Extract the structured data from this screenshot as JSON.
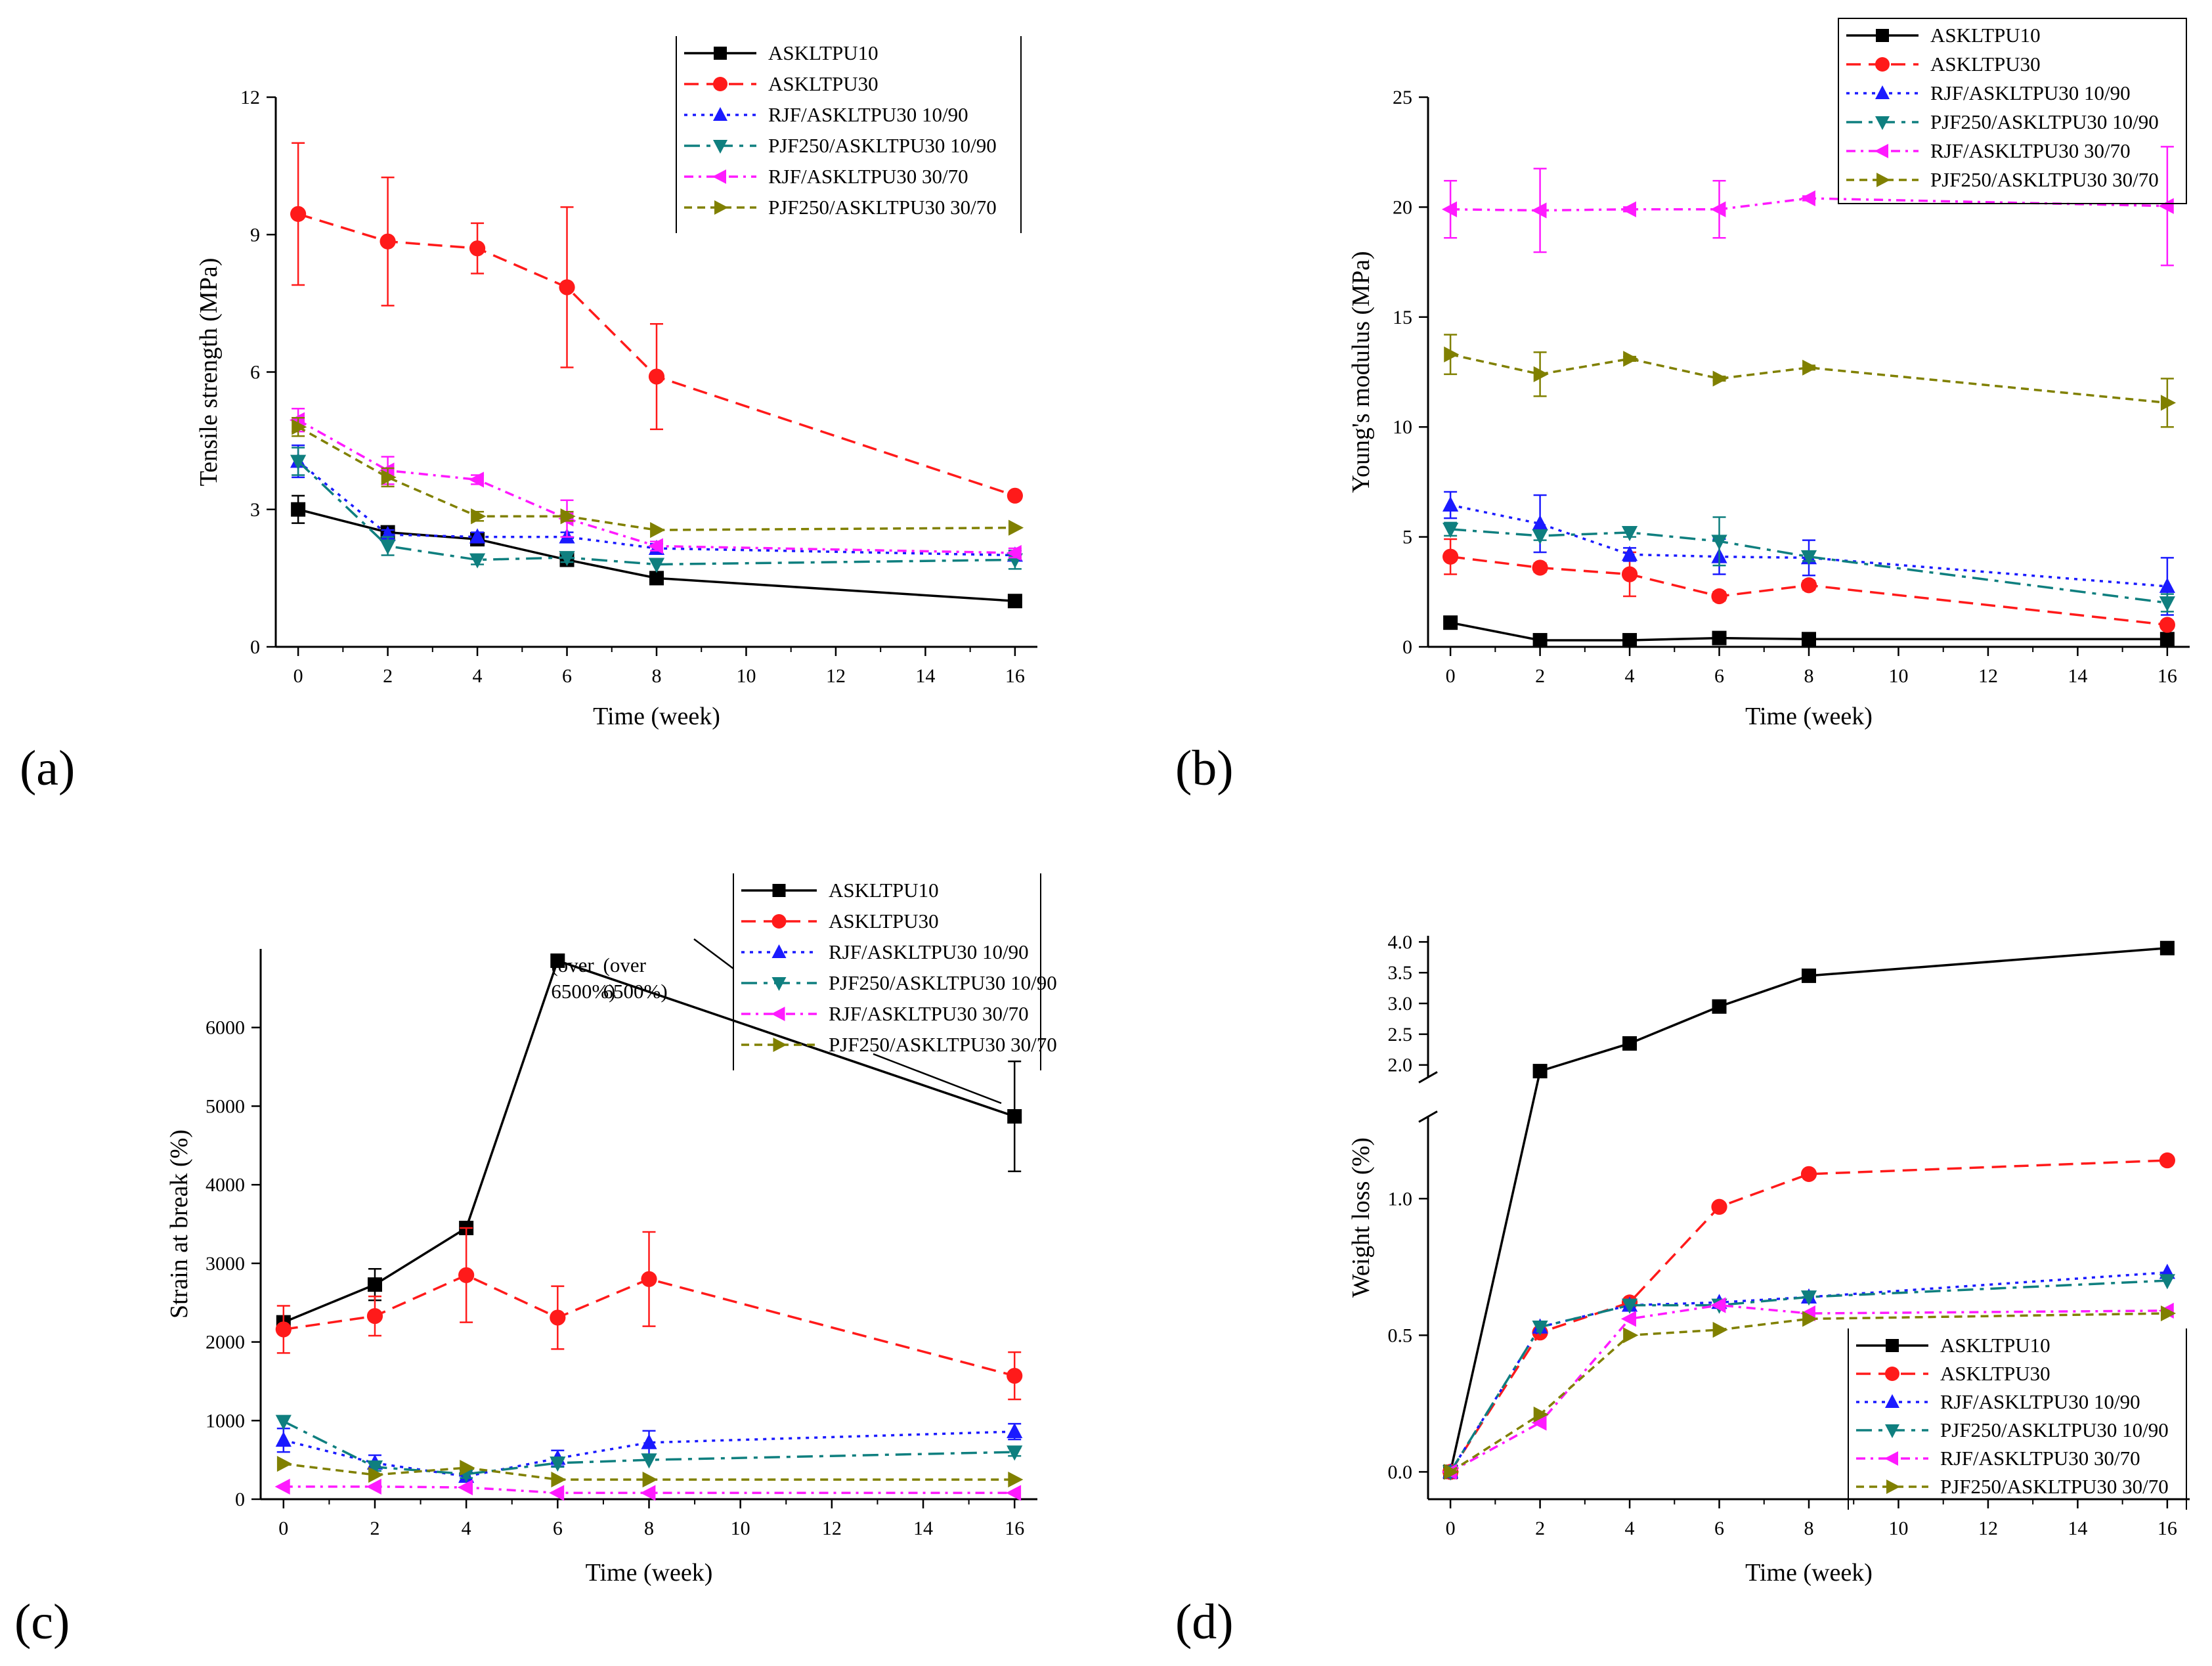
{
  "figure": {
    "panel_labels": [
      "(a)",
      "(b)",
      "(c)",
      "(d)"
    ]
  },
  "series_styles": [
    {
      "name": "ASKLTPU10",
      "color": "#000000",
      "marker": "square",
      "dash": "solid"
    },
    {
      "name": "ASKLTPU30",
      "color": "#ff1a1a",
      "marker": "circle",
      "dash": "longdash"
    },
    {
      "name": "RJF/ASKLTPU30 10/90",
      "color": "#1a1aff",
      "marker": "triangle-up",
      "dash": "dot"
    },
    {
      "name": "PJF250/ASKLTPU30 10/90",
      "color": "#0f7f7f",
      "marker": "triangle-down",
      "dash": "dashdot"
    },
    {
      "name": "RJF/ASKLTPU30 30/70",
      "color": "#ff1aff",
      "marker": "triangle-left",
      "dash": "dashdot2"
    },
    {
      "name": "PJF250/ASKLTPU30 30/70",
      "color": "#808000",
      "marker": "triangle-right",
      "dash": "shortdash"
    }
  ],
  "chart_data": [
    {
      "panel": "(a)",
      "type": "line",
      "title": "",
      "xlabel": "Time (week)",
      "ylabel": "Tensile strength (MPa)",
      "xlim": [
        -0.5,
        16.5
      ],
      "ylim": [
        0,
        12
      ],
      "xticks": [
        0,
        2,
        4,
        6,
        8,
        10,
        12,
        14,
        16
      ],
      "yticks": [
        0,
        3,
        6,
        9,
        12
      ],
      "legend": "top-right",
      "series": [
        {
          "name": "ASKLTPU10",
          "x": [
            0,
            2,
            4,
            6,
            8,
            16
          ],
          "values": [
            3.0,
            2.5,
            2.35,
            1.9,
            1.5,
            1.0
          ],
          "errors": [
            0.3,
            0.1,
            0.1,
            0.1,
            0,
            0
          ]
        },
        {
          "name": "ASKLTPU30",
          "x": [
            0,
            2,
            4,
            6,
            8,
            16
          ],
          "values": [
            9.45,
            8.85,
            8.7,
            7.85,
            5.9,
            3.3
          ],
          "errors": [
            1.55,
            1.4,
            0.55,
            1.75,
            1.15,
            0
          ]
        },
        {
          "name": "RJF/ASKLTPU30 10/90",
          "x": [
            0,
            2,
            4,
            6,
            8,
            16
          ],
          "values": [
            4.05,
            2.45,
            2.4,
            2.4,
            2.15,
            2.0
          ],
          "errors": [
            0.35,
            0.1,
            0.1,
            0.1,
            0.1,
            0.1
          ]
        },
        {
          "name": "PJF250/ASKLTPU30 10/90",
          "x": [
            0,
            2,
            4,
            6,
            8,
            16
          ],
          "values": [
            4.05,
            2.2,
            1.9,
            1.95,
            1.8,
            1.9
          ],
          "errors": [
            0.3,
            0.2,
            0.1,
            0.1,
            0,
            0.2
          ]
        },
        {
          "name": "RJF/ASKLTPU30 30/70",
          "x": [
            0,
            2,
            4,
            6,
            8,
            16
          ],
          "values": [
            4.95,
            3.85,
            3.65,
            2.8,
            2.2,
            2.05
          ],
          "errors": [
            0.25,
            0.3,
            0.1,
            0.4,
            0.1,
            0.1
          ]
        },
        {
          "name": "PJF250/ASKLTPU30 30/70",
          "x": [
            0,
            2,
            4,
            6,
            8,
            16
          ],
          "values": [
            4.8,
            3.7,
            2.85,
            2.85,
            2.55,
            2.6
          ],
          "errors": [
            0.2,
            0.2,
            0.1,
            0.1,
            0,
            0
          ]
        }
      ]
    },
    {
      "panel": "(b)",
      "type": "line",
      "title": "",
      "xlabel": "Time (week)",
      "ylabel": "Young's modulus (MPa)",
      "xlim": [
        -0.5,
        16.5
      ],
      "ylim": [
        0,
        25
      ],
      "xticks": [
        0,
        2,
        4,
        6,
        8,
        10,
        12,
        14,
        16
      ],
      "yticks": [
        0,
        5,
        10,
        15,
        20,
        25
      ],
      "legend": "top-right",
      "series": [
        {
          "name": "ASKLTPU10",
          "x": [
            0,
            2,
            4,
            6,
            8,
            16
          ],
          "values": [
            1.1,
            0.3,
            0.3,
            0.4,
            0.35,
            0.35
          ],
          "errors": [
            0.1,
            0,
            0,
            0,
            0,
            0
          ]
        },
        {
          "name": "ASKLTPU30",
          "x": [
            0,
            2,
            4,
            6,
            8,
            16
          ],
          "values": [
            4.1,
            3.6,
            3.3,
            2.3,
            2.8,
            1.0
          ],
          "errors": [
            0.8,
            0.2,
            1.0,
            0.2,
            0.2,
            0.1
          ]
        },
        {
          "name": "RJF/ASKLTPU30 10/90",
          "x": [
            0,
            2,
            4,
            6,
            8,
            16
          ],
          "values": [
            6.45,
            5.6,
            4.2,
            4.1,
            4.05,
            2.75
          ],
          "errors": [
            0.6,
            1.3,
            0.3,
            0.8,
            0.8,
            1.3
          ]
        },
        {
          "name": "PJF250/ASKLTPU30 10/90",
          "x": [
            0,
            2,
            4,
            6,
            8,
            16
          ],
          "values": [
            5.35,
            5.05,
            5.2,
            4.8,
            4.1,
            2.0
          ],
          "errors": [
            0.3,
            0.2,
            0.2,
            1.1,
            0.2,
            0.4
          ]
        },
        {
          "name": "RJF/ASKLTPU30 30/70",
          "x": [
            0,
            2,
            4,
            6,
            8,
            16
          ],
          "values": [
            19.9,
            19.85,
            19.9,
            19.9,
            20.4,
            20.05
          ],
          "errors": [
            1.3,
            1.9,
            0.1,
            1.3,
            0.1,
            2.7
          ]
        },
        {
          "name": "PJF250/ASKLTPU30 30/70",
          "x": [
            0,
            2,
            4,
            6,
            8,
            16
          ],
          "values": [
            13.3,
            12.4,
            13.1,
            12.2,
            12.7,
            11.1
          ],
          "errors": [
            0.9,
            1.0,
            0.1,
            0.1,
            0.1,
            1.1
          ]
        }
      ]
    },
    {
      "panel": "(c)",
      "type": "line",
      "title": "",
      "xlabel": "Time (week)",
      "ylabel": "Strain at break (%)",
      "xlim": [
        -0.5,
        16.5
      ],
      "ylim": [
        0,
        7000
      ],
      "xticks": [
        0,
        2,
        4,
        6,
        8,
        10,
        12,
        14,
        16
      ],
      "yticks": [
        0,
        1000,
        2000,
        3000,
        4000,
        5000,
        6000
      ],
      "legend": "top-right",
      "annotations": [
        "(over 6500%)",
        "(over 6500%)"
      ],
      "series": [
        {
          "name": "ASKLTPU10",
          "x": [
            0,
            2,
            4,
            6,
            16
          ],
          "values": [
            2250,
            2730,
            3450,
            6850,
            4870
          ],
          "errors": [
            0,
            200,
            0,
            0,
            700
          ],
          "note": "weeks 6 and 8 over 6500%"
        },
        {
          "name": "ASKLTPU30",
          "x": [
            0,
            2,
            4,
            6,
            8,
            16
          ],
          "values": [
            2160,
            2330,
            2850,
            2310,
            2800,
            1570
          ],
          "errors": [
            300,
            250,
            600,
            400,
            600,
            300
          ]
        },
        {
          "name": "RJF/ASKLTPU30 10/90",
          "x": [
            0,
            2,
            4,
            6,
            8,
            16
          ],
          "values": [
            750,
            460,
            290,
            520,
            720,
            860
          ],
          "errors": [
            150,
            100,
            50,
            100,
            150,
            100
          ]
        },
        {
          "name": "PJF250/ASKLTPU30 10/90",
          "x": [
            0,
            2,
            4,
            6,
            8,
            16
          ],
          "values": [
            990,
            410,
            320,
            460,
            500,
            600
          ],
          "errors": [
            0,
            50,
            50,
            50,
            0,
            50
          ]
        },
        {
          "name": "RJF/ASKLTPU30 30/70",
          "x": [
            0,
            2,
            4,
            6,
            8,
            16
          ],
          "values": [
            160,
            160,
            150,
            80,
            80,
            80
          ],
          "errors": [
            0,
            0,
            0,
            0,
            0,
            0
          ]
        },
        {
          "name": "PJF250/ASKLTPU30 30/70",
          "x": [
            0,
            2,
            4,
            6,
            8,
            16
          ],
          "values": [
            450,
            310,
            400,
            250,
            250,
            250
          ],
          "errors": [
            0,
            0,
            0,
            0,
            0,
            0
          ]
        }
      ]
    },
    {
      "panel": "(d)",
      "type": "line",
      "title": "",
      "xlabel": "Time (week)",
      "ylabel": "Weight loss (%)",
      "xlim": [
        -0.5,
        16.5
      ],
      "ylim_lower": [
        -0.1,
        1.3
      ],
      "ylim_upper": [
        1.8,
        4.1
      ],
      "axis_break": true,
      "xticks": [
        0,
        2,
        4,
        6,
        8,
        10,
        12,
        14,
        16
      ],
      "yticks_lower": [
        "0.0",
        "0.5",
        "1.0"
      ],
      "yticks_upper": [
        "2.0",
        "2.5",
        "3.0",
        "3.5",
        "4.0"
      ],
      "legend": "bottom-right",
      "series": [
        {
          "name": "ASKLTPU10",
          "x": [
            0,
            2,
            4,
            6,
            8,
            16
          ],
          "values": [
            0,
            1.9,
            2.35,
            2.95,
            3.45,
            3.9
          ]
        },
        {
          "name": "ASKLTPU30",
          "x": [
            0,
            2,
            4,
            6,
            8,
            16
          ],
          "values": [
            0,
            0.51,
            0.62,
            0.97,
            1.09,
            1.14
          ]
        },
        {
          "name": "RJF/ASKLTPU30 10/90",
          "x": [
            0,
            2,
            4,
            6,
            8,
            16
          ],
          "values": [
            0,
            0.53,
            0.61,
            0.62,
            0.64,
            0.73
          ]
        },
        {
          "name": "PJF250/ASKLTPU30 10/90",
          "x": [
            0,
            2,
            4,
            6,
            8,
            16
          ],
          "values": [
            0,
            0.53,
            0.61,
            0.61,
            0.64,
            0.7
          ]
        },
        {
          "name": "RJF/ASKLTPU30 30/70",
          "x": [
            0,
            2,
            4,
            6,
            8,
            16
          ],
          "values": [
            0,
            0.18,
            0.56,
            0.61,
            0.58,
            0.59
          ]
        },
        {
          "name": "PJF250/ASKLTPU30 30/70",
          "x": [
            0,
            2,
            4,
            6,
            8,
            16
          ],
          "values": [
            0,
            0.21,
            0.5,
            0.52,
            0.56,
            0.58
          ]
        }
      ]
    }
  ]
}
